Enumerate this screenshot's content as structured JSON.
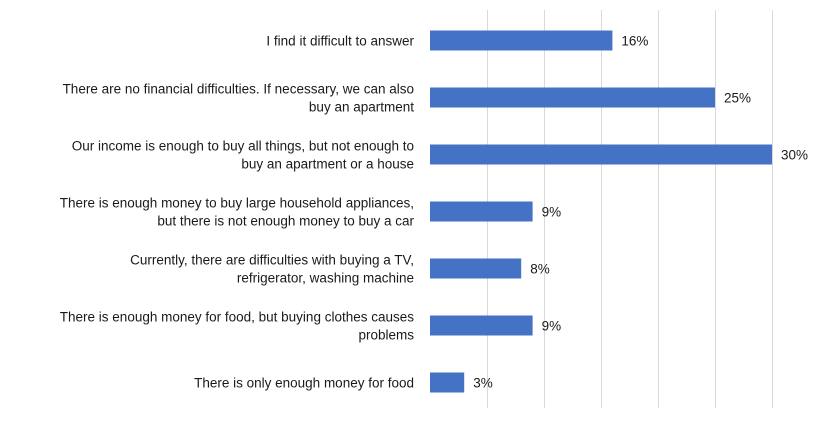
{
  "chart_data": {
    "type": "bar",
    "orientation": "horizontal",
    "categories": [
      [
        "I find it difficult to answer"
      ],
      [
        "There are no financial difficulties. If necessary, we can also",
        "buy an apartment"
      ],
      [
        "Our income is enough to buy all things, but not enough to",
        "buy an apartment or a house"
      ],
      [
        "There is enough money to buy large household appliances,",
        "but there is not enough money to buy a car"
      ],
      [
        "Currently, there are difficulties with buying a TV,",
        "refrigerator, washing machine"
      ],
      [
        "There is enough money for food, but buying clothes causes",
        "problems"
      ],
      [
        "There is only enough money for food"
      ]
    ],
    "values": [
      16,
      25,
      30,
      9,
      8,
      9,
      3
    ],
    "data_labels": [
      "16%",
      "25%",
      "30%",
      "9%",
      "8%",
      "9%",
      "3%"
    ],
    "xlim": [
      0,
      30
    ],
    "grid": true,
    "bar_color": "#4472c4",
    "grid_color": "#d9d9d9"
  }
}
